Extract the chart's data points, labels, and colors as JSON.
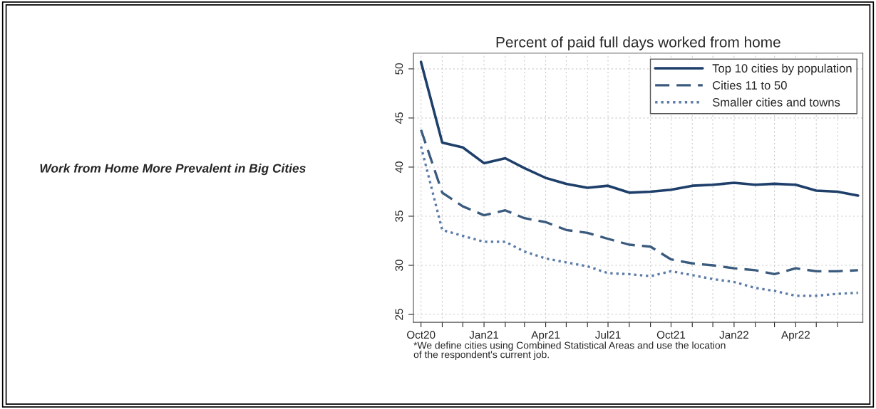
{
  "chart_data": {
    "type": "line",
    "title": "Percent of paid full days worked from home",
    "annotations": [
      "Work from Home More Prevalent in Big Cities",
      "*We define cities using Combined Statistical Areas and use the location\nof the respondent's current job."
    ],
    "x": [
      "2020-10",
      "2020-11",
      "2020-12",
      "2021-01",
      "2021-02",
      "2021-03",
      "2021-04",
      "2021-05",
      "2021-06",
      "2021-07",
      "2021-08",
      "2021-09",
      "2021-10",
      "2021-11",
      "2021-12",
      "2022-01",
      "2022-02",
      "2022-03",
      "2022-04",
      "2022-05",
      "2022-06",
      "2022-07"
    ],
    "series": [
      {
        "name": "Top 10 cities by population",
        "color": "#1f3f6b",
        "line_style": "solid",
        "values": [
          50.7,
          42.5,
          42.0,
          40.4,
          40.9,
          39.9,
          38.9,
          38.3,
          37.9,
          38.1,
          37.4,
          37.5,
          37.7,
          38.1,
          38.2,
          38.4,
          38.2,
          38.3,
          38.2,
          37.6,
          37.5,
          37.1
        ]
      },
      {
        "name": "Cities 11 to 50",
        "color": "#3a5a7e",
        "line_style": "dashed",
        "values": [
          43.8,
          37.4,
          36.0,
          35.1,
          35.6,
          34.8,
          34.4,
          33.6,
          33.3,
          32.7,
          32.1,
          31.9,
          30.6,
          30.2,
          30.0,
          29.7,
          29.5,
          29.1,
          29.7,
          29.4,
          29.4,
          29.5
        ]
      },
      {
        "name": "Smaller cities and towns",
        "color": "#5b7ba8",
        "line_style": "dotted",
        "values": [
          42.1,
          33.6,
          33.0,
          32.4,
          32.4,
          31.4,
          30.7,
          30.3,
          29.9,
          29.2,
          29.1,
          28.9,
          29.4,
          29.0,
          28.6,
          28.3,
          27.7,
          27.4,
          26.9,
          26.9,
          27.1,
          27.2
        ]
      }
    ],
    "xlim": [
      "2020-09-20",
      "2022-07-08"
    ],
    "xticks": [
      {
        "value": "2020-10",
        "label": "Oct20"
      },
      {
        "value": "2020-11",
        "label": null
      },
      {
        "value": "2020-12",
        "label": null
      },
      {
        "value": "2021-01",
        "label": "Jan21"
      },
      {
        "value": "2021-02",
        "label": null
      },
      {
        "value": "2021-03",
        "label": null
      },
      {
        "value": "2021-04",
        "label": "Apr21"
      },
      {
        "value": "2021-05",
        "label": null
      },
      {
        "value": "2021-06",
        "label": null
      },
      {
        "value": "2021-07",
        "label": "Jul21"
      },
      {
        "value": "2021-08",
        "label": null
      },
      {
        "value": "2021-09",
        "label": null
      },
      {
        "value": "2021-10",
        "label": "Oct21"
      },
      {
        "value": "2021-11",
        "label": null
      },
      {
        "value": "2021-12",
        "label": null
      },
      {
        "value": "2022-01",
        "label": "Jan22"
      },
      {
        "value": "2022-02",
        "label": null
      },
      {
        "value": "2022-03",
        "label": null
      },
      {
        "value": "2022-04",
        "label": "Apr22"
      },
      {
        "value": "2022-05",
        "label": null
      },
      {
        "value": "2022-06",
        "label": null
      }
    ],
    "ylim": [
      24.2,
      51.6
    ],
    "yticks": [
      25,
      30,
      35,
      40,
      45,
      50
    ],
    "grid": true,
    "legend": "top right"
  }
}
